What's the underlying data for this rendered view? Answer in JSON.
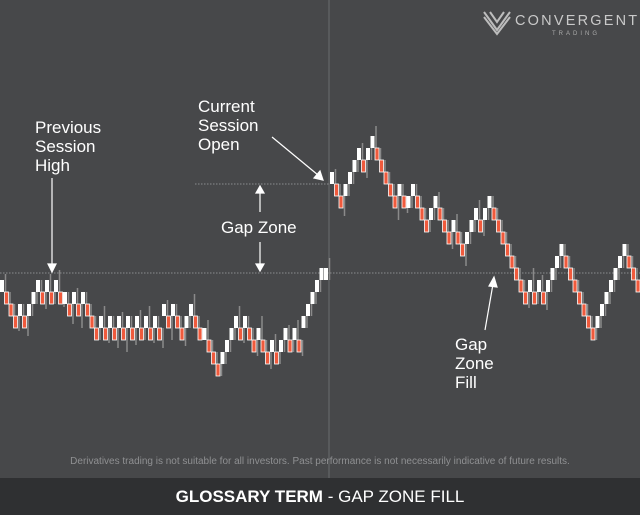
{
  "brand": {
    "name": "CONVERGENT",
    "tagline": "TRADING"
  },
  "annotations": {
    "previous_high": [
      "Previous",
      "Session",
      "High"
    ],
    "current_open": [
      "Current",
      "Session",
      "Open"
    ],
    "gap_zone": "Gap Zone",
    "gap_fill": [
      "Gap",
      "Zone",
      "Fill"
    ]
  },
  "disclaimer": "Derivatives trading is not suitable for all investors. Past performance is not necessarily indicative of future results.",
  "footer": {
    "term_label": "GLOSSARY TERM",
    "separator": " - ",
    "term": "GAP ZONE FILL"
  },
  "colors": {
    "background": "#47484a",
    "footer": "#2f3032",
    "up_candle": "#ffffff",
    "down_candle": "#f05a3c",
    "wick": "#8a8a8a"
  },
  "chart_data": {
    "type": "candlestick",
    "unit": "brick",
    "previous_session_high": 0.6,
    "current_session_open": 8,
    "sessions": [
      {
        "levels": [
          0,
          -1,
          -2,
          -3,
          -2,
          -3,
          -2,
          -1,
          0,
          -1,
          0,
          -1,
          0,
          -1,
          -1,
          -2,
          -1,
          -2,
          -1,
          -2,
          -3,
          -4,
          -3,
          -4,
          -3,
          -4,
          -3,
          -4,
          -3,
          -4,
          -3,
          -4,
          -3,
          -4,
          -3,
          -4,
          -2,
          -3,
          -2,
          -3,
          -4,
          -3,
          -2,
          -3,
          -4,
          -4,
          -5,
          -6,
          -7,
          -6,
          -5,
          -4,
          -3,
          -4,
          -3,
          -4,
          -5,
          -4,
          -5,
          -6,
          -5,
          -6,
          -5,
          -4,
          -5,
          -4,
          -5,
          -3,
          -2,
          -1,
          0,
          1,
          1
        ]
      },
      {
        "levels": [
          9,
          8,
          7,
          8,
          9,
          10,
          11,
          10,
          11,
          12,
          11,
          10,
          9,
          8,
          7,
          8,
          7,
          7,
          8,
          7,
          6,
          5,
          6,
          7,
          6,
          5,
          4,
          5,
          4,
          3,
          4,
          5,
          6,
          5,
          6,
          7,
          6,
          5,
          4,
          3,
          2,
          1,
          0,
          -1,
          0,
          -1,
          0,
          -1,
          0,
          1,
          2,
          3,
          2,
          1,
          0,
          -1,
          -2,
          -3,
          -4,
          -3,
          -2,
          -1,
          0,
          1,
          2,
          3,
          2,
          1,
          0
        ]
      }
    ]
  }
}
